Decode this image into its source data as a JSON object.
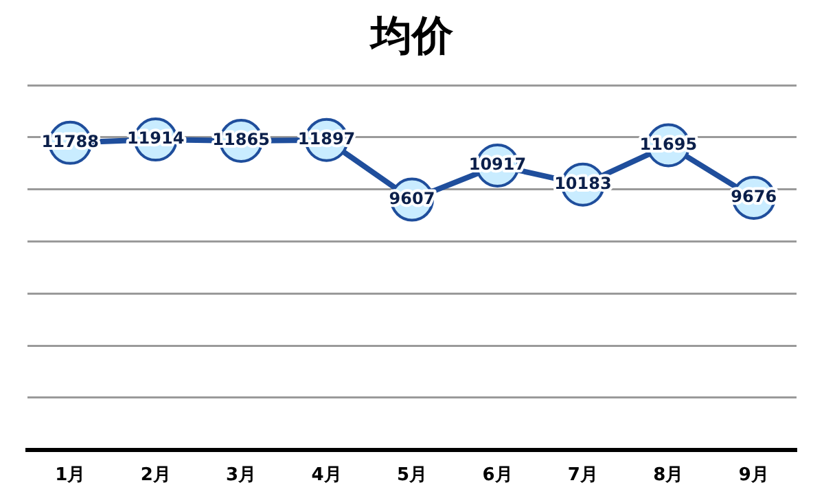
{
  "chart_data": {
    "type": "line",
    "title": "均价",
    "categories": [
      "1月",
      "2月",
      "3月",
      "4月",
      "5月",
      "6月",
      "7月",
      "8月",
      "9月"
    ],
    "series": [
      {
        "color": "#1f4e9c",
        "values": [
          11788,
          11914,
          11865,
          11897,
          9607,
          10917,
          10183,
          11695,
          9676
        ]
      }
    ],
    "ylim": [
      0,
      14000
    ],
    "yticks": [
      {
        "value": 0,
        "label": null
      },
      {
        "value": 2000,
        "label": null
      },
      {
        "value": 4000,
        "label": null
      },
      {
        "value": 6000,
        "label": null
      },
      {
        "value": 8000,
        "label": null
      },
      {
        "value": 10000,
        "label": null
      },
      {
        "value": 12000,
        "label": null
      },
      {
        "value": 14000,
        "label": null
      }
    ],
    "tick_labels": "x",
    "grid": "y",
    "legend": false,
    "marker": "circle",
    "line_style": "solid",
    "data_labels": true
  }
}
